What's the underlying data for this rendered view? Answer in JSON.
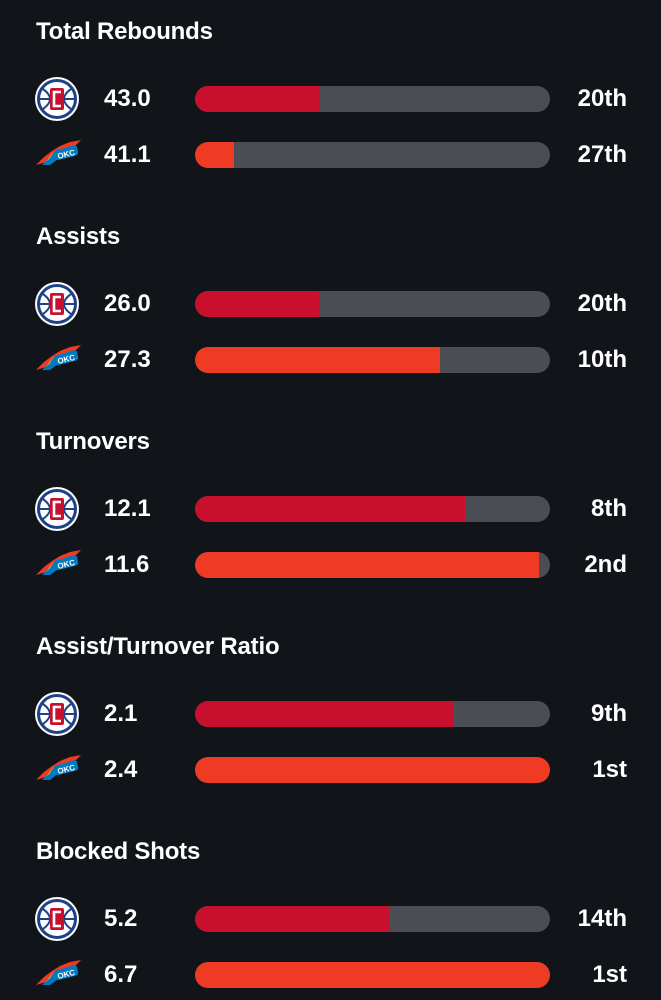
{
  "colors": {
    "background": "#111418",
    "track": "#4a4e54",
    "clippers_bar": "#c8102e",
    "thunder_bar": "#ef3b24"
  },
  "teams": {
    "clippers": {
      "logo_icon": "clippers-logo-icon",
      "logo_text": "LAC"
    },
    "thunder": {
      "logo_icon": "thunder-logo-icon",
      "logo_text": "OKC"
    }
  },
  "stats": [
    {
      "title": "Total Rebounds",
      "rows": [
        {
          "team": "clippers",
          "value": "43.0",
          "rank": "20th",
          "fill": 0.35
        },
        {
          "team": "thunder",
          "value": "41.1",
          "rank": "27th",
          "fill": 0.11
        }
      ]
    },
    {
      "title": "Assists",
      "rows": [
        {
          "team": "clippers",
          "value": "26.0",
          "rank": "20th",
          "fill": 0.35
        },
        {
          "team": "thunder",
          "value": "27.3",
          "rank": "10th",
          "fill": 0.69
        }
      ]
    },
    {
      "title": "Turnovers",
      "rows": [
        {
          "team": "clippers",
          "value": "12.1",
          "rank": "8th",
          "fill": 0.76
        },
        {
          "team": "thunder",
          "value": "11.6",
          "rank": "2nd",
          "fill": 0.97
        }
      ]
    },
    {
      "title": "Assist/Turnover Ratio",
      "rows": [
        {
          "team": "clippers",
          "value": "2.1",
          "rank": "9th",
          "fill": 0.73
        },
        {
          "team": "thunder",
          "value": "2.4",
          "rank": "1st",
          "fill": 1.0
        }
      ]
    },
    {
      "title": "Blocked Shots",
      "rows": [
        {
          "team": "clippers",
          "value": "5.2",
          "rank": "14th",
          "fill": 0.55
        },
        {
          "team": "thunder",
          "value": "6.7",
          "rank": "1st",
          "fill": 1.0
        }
      ]
    }
  ]
}
